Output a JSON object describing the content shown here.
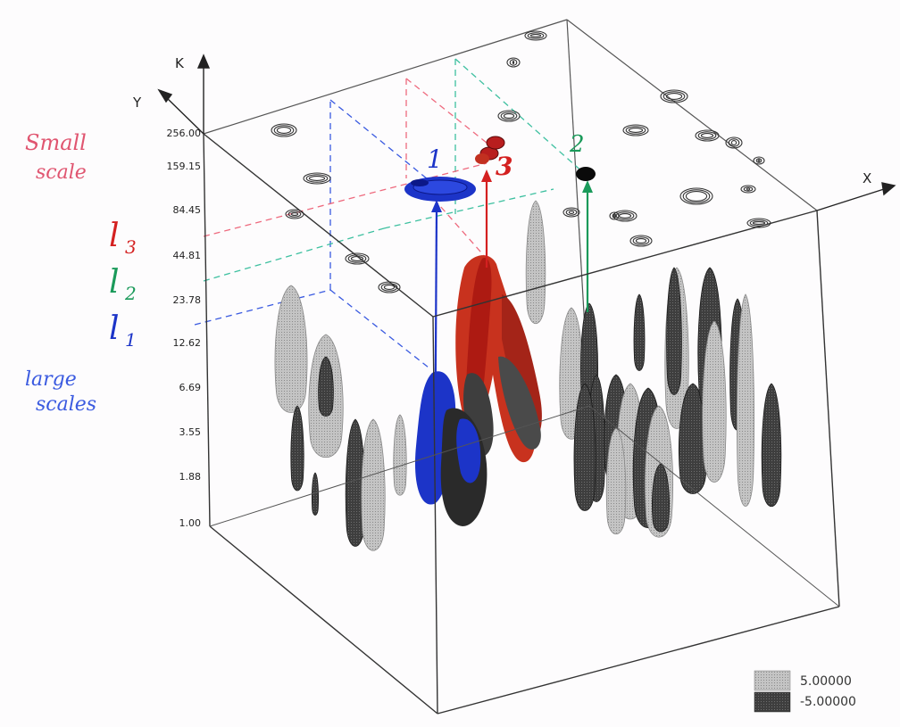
{
  "axes": {
    "k_label": "K",
    "y_label": "Y",
    "x_label": "X",
    "k_ticks": [
      "256.00",
      "159.15",
      "84.45",
      "44.81",
      "23.78",
      "12.62",
      "6.69",
      "3.55",
      "1.88",
      "1.00"
    ]
  },
  "annotations": {
    "small_scale_line1": "Small",
    "small_scale_line2": "scale",
    "large_scale_line1": "large",
    "large_scale_line2": "scales",
    "l3": "l",
    "l3_sub": "3",
    "l2": "l",
    "l2_sub": "2",
    "l1": "l",
    "l1_sub": "1",
    "marker1": "1",
    "marker2": "2",
    "marker3": "3"
  },
  "legend": {
    "positive_value": "5.00000",
    "negative_value": "-5.00000",
    "positive_color": "#b8b8b8",
    "negative_color": "#454545"
  },
  "colors": {
    "scale1": "#1c34c8",
    "scale2": "#1a9a5a",
    "scale3": "#d42020",
    "small_text": "#e05570",
    "large_text": "#3a5ae0"
  }
}
